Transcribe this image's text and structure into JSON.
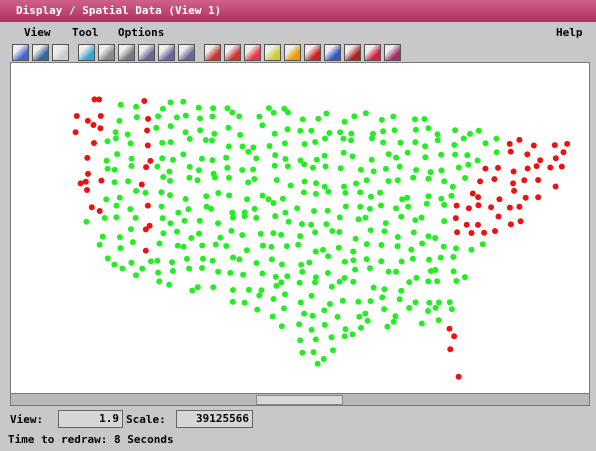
{
  "window": {
    "title": "Display / Spatial Data (View 1)"
  },
  "menu": {
    "items": [
      "View",
      "Tool",
      "Options"
    ],
    "help": "Help"
  },
  "status": {
    "view_label": "View:",
    "view_value": "1.9",
    "scale_label": "Scale:",
    "scale_value": "39125566"
  },
  "message": "Time to redraw: 8 Seconds"
}
